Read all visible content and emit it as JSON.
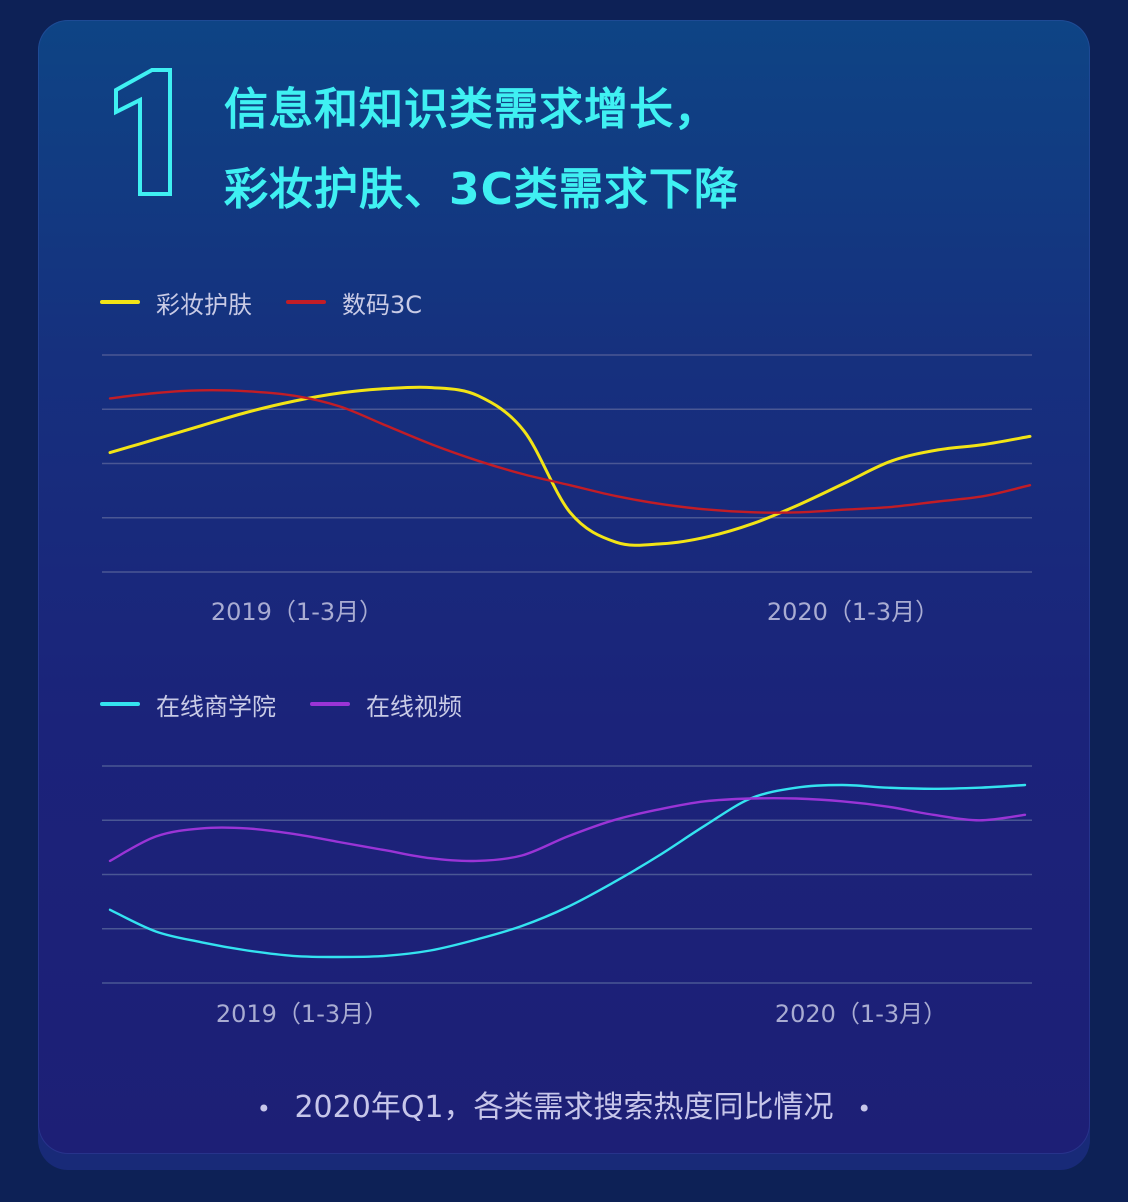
{
  "header": {
    "number": "1",
    "title_line1": "信息和知识类需求增长，",
    "title_line2": "彩妆护肤、3C类需求下降",
    "accent_color": "#3ff0f2"
  },
  "chart_data": [
    {
      "type": "line",
      "categories": [
        "2019（1-3月）",
        "2020（1-3月）"
      ],
      "legend": "top-left",
      "grid": true,
      "ylim": [
        0,
        4
      ],
      "y_ticks_labeled": false,
      "x": [
        0,
        0.05,
        0.1,
        0.15,
        0.2,
        0.25,
        0.3,
        0.35,
        0.4,
        0.45,
        0.5,
        0.55,
        0.6,
        0.65,
        0.7,
        0.75,
        0.8,
        0.85,
        0.9,
        0.95,
        1.0
      ],
      "series": [
        {
          "name": "彩妆护肤",
          "color": "#f2e416",
          "values": [
            2.2,
            2.45,
            2.7,
            2.95,
            3.15,
            3.3,
            3.38,
            3.4,
            3.25,
            2.6,
            1.1,
            0.55,
            0.52,
            0.65,
            0.9,
            1.25,
            1.65,
            2.05,
            2.25,
            2.35,
            2.5
          ]
        },
        {
          "name": "数码3C",
          "color": "#c21d26",
          "values": [
            3.2,
            3.3,
            3.35,
            3.33,
            3.25,
            3.05,
            2.7,
            2.35,
            2.05,
            1.8,
            1.6,
            1.4,
            1.25,
            1.15,
            1.1,
            1.1,
            1.15,
            1.2,
            1.3,
            1.4,
            1.6
          ]
        }
      ]
    },
    {
      "type": "line",
      "categories": [
        "2019（1-3月）",
        "2020（1-3月）"
      ],
      "legend": "top-left",
      "grid": true,
      "ylim": [
        0,
        4
      ],
      "y_ticks_labeled": false,
      "x": [
        0,
        0.05,
        0.1,
        0.15,
        0.2,
        0.25,
        0.3,
        0.35,
        0.4,
        0.45,
        0.5,
        0.55,
        0.6,
        0.65,
        0.7,
        0.75,
        0.8,
        0.85,
        0.9,
        0.95,
        1.0
      ],
      "series": [
        {
          "name": "在线商学院",
          "color": "#34e3f0",
          "values": [
            1.35,
            0.95,
            0.75,
            0.6,
            0.5,
            0.48,
            0.5,
            0.6,
            0.8,
            1.05,
            1.4,
            1.85,
            2.35,
            2.9,
            3.4,
            3.6,
            3.65,
            3.6,
            3.58,
            3.6,
            3.65
          ]
        },
        {
          "name": "在线视频",
          "color": "#9a34d6",
          "values": [
            2.25,
            2.7,
            2.85,
            2.85,
            2.75,
            2.6,
            2.45,
            2.3,
            2.25,
            2.35,
            2.7,
            3.0,
            3.2,
            3.35,
            3.4,
            3.4,
            3.35,
            3.25,
            3.1,
            3.0,
            3.1
          ]
        }
      ]
    }
  ],
  "footnote": {
    "text": "2020年Q1，各类需求搜索热度同比情况",
    "bullet": "•"
  }
}
